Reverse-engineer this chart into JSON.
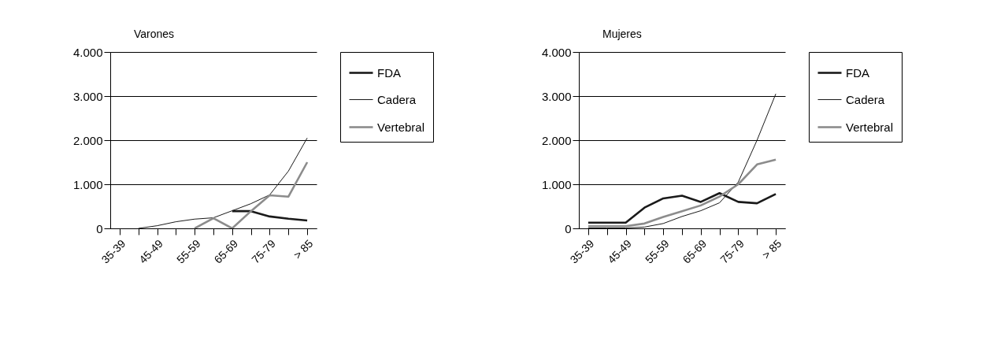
{
  "chart_data": [
    {
      "type": "line",
      "title": "Varones",
      "categories": [
        "35-39",
        null,
        "45-49",
        null,
        "55-59",
        null,
        "65-69",
        null,
        "75-79",
        null,
        "> 85"
      ],
      "series": [
        {
          "name": "FDA",
          "color": "#1a1a1a",
          "values": [
            null,
            null,
            null,
            null,
            null,
            null,
            390,
            390,
            270,
            220,
            180
          ]
        },
        {
          "name": "Cadera",
          "color": "#1a1a1a",
          "values": [
            null,
            0,
            60,
            150,
            210,
            240,
            400,
            560,
            760,
            1300,
            2050
          ]
        },
        {
          "name": "Vertebral",
          "color": "#8c8c8c",
          "values": [
            null,
            null,
            null,
            null,
            0,
            230,
            0,
            390,
            750,
            720,
            1500
          ]
        }
      ],
      "ylim": [
        0,
        4000
      ],
      "yticks": [
        0,
        {
          "value": 1000,
          "label": "1.000"
        },
        {
          "value": 2000,
          "label": "2.000"
        },
        {
          "value": 3000,
          "label": "3.000"
        },
        {
          "value": 4000,
          "label": "4.000"
        }
      ],
      "grid": "y",
      "legend": "right",
      "marker": "none",
      "line_style": "solid"
    },
    {
      "type": "line",
      "title": "Mujeres",
      "categories": [
        "35-39",
        null,
        "45-49",
        null,
        "55-59",
        null,
        "65-69",
        null,
        "75-79",
        null,
        "> 85"
      ],
      "series": [
        {
          "name": "FDA",
          "color": "#1a1a1a",
          "values": [
            130,
            130,
            130,
            470,
            680,
            740,
            600,
            800,
            600,
            570,
            780
          ]
        },
        {
          "name": "Cadera",
          "color": "#1a1a1a",
          "values": [
            10,
            10,
            10,
            30,
            110,
            270,
            400,
            580,
            1050,
            2000,
            3050
          ]
        },
        {
          "name": "Vertebral",
          "color": "#8c8c8c",
          "values": [
            50,
            50,
            50,
            110,
            260,
            390,
            520,
            720,
            1000,
            1450,
            1560
          ]
        }
      ],
      "ylim": [
        0,
        4000
      ],
      "yticks": [
        0,
        {
          "value": 1000,
          "label": "1.000"
        },
        {
          "value": 2000,
          "label": "2.000"
        },
        {
          "value": 3000,
          "label": "3.000"
        },
        {
          "value": 4000,
          "label": "4.000"
        }
      ],
      "grid": "y",
      "legend": "right",
      "marker": "none",
      "line_style": "solid"
    }
  ]
}
